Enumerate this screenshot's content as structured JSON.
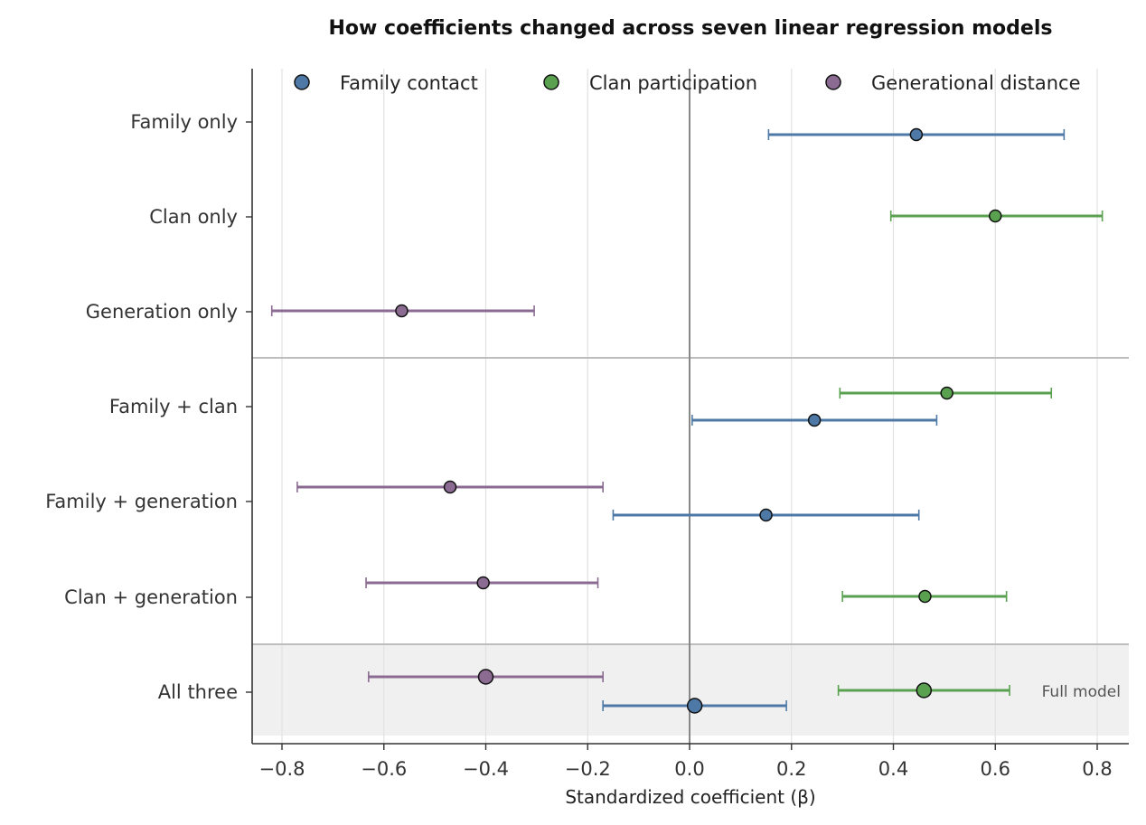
{
  "chart_data": {
    "type": "scatter",
    "subtype": "coefficient plot with error bars",
    "title": "How coefficients changed across seven linear regression models",
    "xlabel": "Standardized coefficient (β)",
    "ylabel": "",
    "xlim": [
      -0.86,
      0.86
    ],
    "xticks": [
      -0.8,
      -0.6,
      -0.4,
      -0.2,
      0.0,
      0.2,
      0.4,
      0.6,
      0.8
    ],
    "xtick_labels": [
      "−0.8",
      "−0.6",
      "−0.4",
      "−0.2",
      "0.0",
      "0.2",
      "0.4",
      "0.6",
      "0.8"
    ],
    "grid": "vertical",
    "legend_position": "top",
    "models": [
      "Family only",
      "Clan only",
      "Generation only",
      "Family + clan",
      "Family + generation",
      "Clan + generation",
      "All three"
    ],
    "highlight": {
      "model": "All three",
      "label": "Full model"
    },
    "series": [
      {
        "name": "Family contact",
        "color": "#4e79a7",
        "points": [
          {
            "model": "Family only",
            "estimate": 0.445,
            "ci": [
              0.155,
              0.735
            ]
          },
          {
            "model": "Family + clan",
            "estimate": 0.245,
            "ci": [
              0.005,
              0.485
            ]
          },
          {
            "model": "Family + generation",
            "estimate": 0.15,
            "ci": [
              -0.15,
              0.45
            ]
          },
          {
            "model": "All three",
            "estimate": 0.01,
            "ci": [
              -0.17,
              0.19
            ]
          }
        ]
      },
      {
        "name": "Clan participation",
        "color": "#59a14f",
        "points": [
          {
            "model": "Clan only",
            "estimate": 0.6,
            "ci": [
              0.395,
              0.81
            ]
          },
          {
            "model": "Family + clan",
            "estimate": 0.505,
            "ci": [
              0.295,
              0.71
            ]
          },
          {
            "model": "Clan + generation",
            "estimate": 0.462,
            "ci": [
              0.3,
              0.622
            ]
          },
          {
            "model": "All three",
            "estimate": 0.46,
            "ci": [
              0.292,
              0.628
            ]
          }
        ]
      },
      {
        "name": "Generational distance",
        "color": "#8b6b91",
        "points": [
          {
            "model": "Generation only",
            "estimate": -0.565,
            "ci": [
              -0.82,
              -0.305
            ]
          },
          {
            "model": "Family + generation",
            "estimate": -0.47,
            "ci": [
              -0.77,
              -0.17
            ]
          },
          {
            "model": "Clan + generation",
            "estimate": -0.405,
            "ci": [
              -0.635,
              -0.18
            ]
          },
          {
            "model": "All three",
            "estimate": -0.4,
            "ci": [
              -0.63,
              -0.17
            ]
          }
        ]
      }
    ]
  }
}
